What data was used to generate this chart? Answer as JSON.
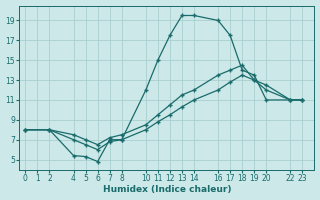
{
  "xlabel": "Humidex (Indice chaleur)",
  "bg_color": "#cce8e8",
  "grid_color": "#aacece",
  "line_color": "#1a6b6b",
  "xlim": [
    -0.5,
    24
  ],
  "ylim": [
    4,
    20.5
  ],
  "xticks": [
    0,
    1,
    2,
    4,
    5,
    6,
    7,
    8,
    10,
    11,
    12,
    13,
    14,
    16,
    17,
    18,
    19,
    20,
    22,
    23
  ],
  "yticks": [
    5,
    7,
    9,
    11,
    13,
    15,
    17,
    19
  ],
  "lines": [
    {
      "x": [
        0,
        2,
        4,
        5,
        6,
        7,
        8,
        10,
        11,
        12,
        13,
        14,
        16,
        17,
        18,
        19,
        20,
        22,
        23
      ],
      "y": [
        8,
        8,
        5.4,
        5.3,
        4.8,
        7.0,
        7.0,
        12.0,
        15.0,
        17.5,
        19.5,
        19.5,
        19.0,
        17.5,
        14.0,
        13.5,
        11.0,
        11.0,
        11.0
      ]
    },
    {
      "x": [
        0,
        2,
        4,
        5,
        6,
        7,
        8,
        10,
        11,
        12,
        13,
        14,
        16,
        17,
        18,
        19,
        20,
        22,
        23
      ],
      "y": [
        8,
        8,
        7.5,
        7.0,
        6.5,
        7.2,
        7.5,
        8.5,
        9.5,
        10.5,
        11.5,
        12.0,
        13.5,
        14.0,
        14.5,
        13.0,
        12.5,
        11.0,
        11.0
      ]
    },
    {
      "x": [
        0,
        2,
        4,
        5,
        6,
        7,
        8,
        10,
        11,
        12,
        13,
        14,
        16,
        17,
        18,
        19,
        20,
        22,
        23
      ],
      "y": [
        8,
        8,
        7.0,
        6.5,
        6.0,
        6.8,
        7.0,
        8.0,
        8.8,
        9.5,
        10.3,
        11.0,
        12.0,
        12.8,
        13.5,
        13.0,
        12.0,
        11.0,
        11.0
      ]
    }
  ]
}
